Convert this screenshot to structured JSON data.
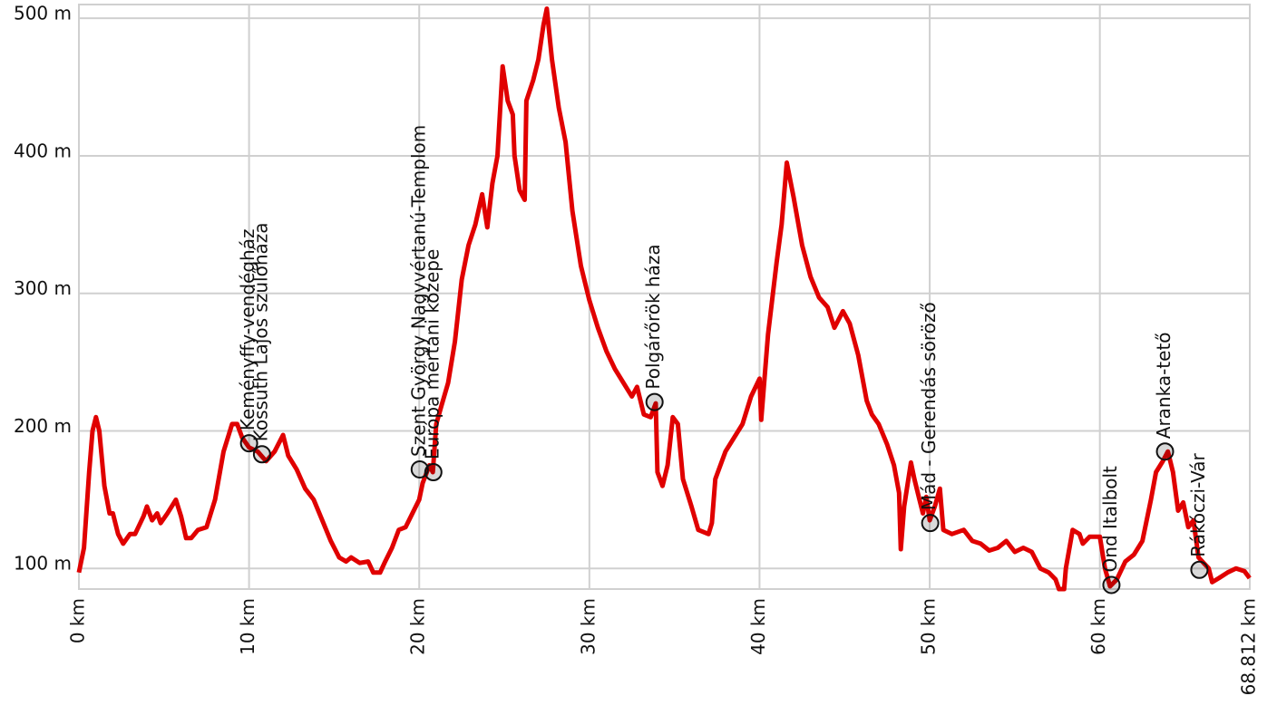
{
  "chart_data": {
    "type": "line",
    "x": [
      0,
      0.3,
      0.6,
      0.8,
      1.0,
      1.2,
      1.5,
      1.8,
      2.0,
      2.3,
      2.6,
      3.0,
      3.3,
      3.8,
      4.0,
      4.3,
      4.6,
      4.8,
      5.2,
      5.7,
      6.0,
      6.3,
      6.6,
      7.0,
      7.5,
      8.0,
      8.5,
      9.0,
      9.3,
      9.6,
      10.0,
      10.5,
      11.0,
      11.5,
      12.0,
      12.3,
      12.8,
      13.3,
      13.8,
      14.3,
      14.8,
      15.3,
      15.7,
      16.0,
      16.5,
      17.0,
      17.3,
      17.7,
      18.0,
      18.4,
      18.8,
      19.2,
      19.6,
      20.0,
      20.2,
      20.6,
      20.8,
      21.0,
      21.3,
      21.7,
      22.1,
      22.5,
      22.9,
      23.3,
      23.7,
      24.0,
      24.3,
      24.6,
      24.9,
      25.2,
      25.5,
      25.6,
      25.9,
      26.2,
      26.3,
      26.7,
      27.0,
      27.3,
      27.5,
      27.8,
      28.2,
      28.6,
      29.0,
      29.5,
      30.0,
      30.5,
      31.0,
      31.5,
      32.0,
      32.5,
      32.8,
      33.2,
      33.6,
      33.9,
      34.0,
      34.3,
      34.6,
      34.9,
      35.2,
      35.5,
      36.0,
      36.4,
      37.0,
      37.2,
      37.4,
      38.0,
      38.5,
      39.0,
      39.5,
      40.0,
      40.1,
      40.5,
      41.0,
      41.3,
      41.6,
      42.0,
      42.5,
      43.0,
      43.5,
      44.0,
      44.4,
      44.9,
      45.3,
      45.8,
      46.3,
      46.6,
      47.0,
      47.5,
      47.9,
      48.2,
      48.3,
      48.5,
      48.9,
      49.1,
      49.4,
      49.6,
      49.8,
      50.0,
      50.3,
      50.6,
      50.8,
      51.3,
      52.0,
      52.5,
      53.0,
      53.5,
      54.0,
      54.5,
      55.0,
      55.5,
      56.0,
      56.5,
      57.0,
      57.4,
      57.6,
      57.9,
      58.0,
      58.4,
      58.8,
      59.0,
      59.4,
      60.0,
      60.3,
      60.6,
      61.0,
      61.5,
      62.0,
      62.5,
      63.0,
      63.3,
      63.7,
      64.0,
      64.3,
      64.6,
      64.9,
      65.2,
      65.5,
      65.8,
      66.1,
      66.4,
      66.6,
      67.0,
      67.5,
      68.0,
      68.5,
      68.8
    ],
    "series": [
      {
        "color": "#e00000",
        "values": [
          97,
          115,
          170,
          200,
          210,
          200,
          160,
          140,
          140,
          125,
          118,
          125,
          125,
          138,
          145,
          135,
          140,
          133,
          140,
          150,
          138,
          122,
          122,
          128,
          130,
          150,
          185,
          205,
          205,
          195,
          188,
          185,
          178,
          185,
          197,
          182,
          172,
          158,
          150,
          135,
          120,
          108,
          105,
          108,
          104,
          105,
          97,
          97,
          105,
          115,
          128,
          130,
          140,
          150,
          162,
          175,
          170,
          205,
          218,
          235,
          265,
          310,
          335,
          350,
          372,
          348,
          380,
          400,
          465,
          440,
          430,
          400,
          375,
          368,
          440,
          455,
          470,
          495,
          507,
          470,
          435,
          410,
          360,
          320,
          295,
          275,
          258,
          245,
          235,
          225,
          232,
          212,
          210,
          220,
          170,
          160,
          175,
          210,
          205,
          165,
          145,
          128,
          125,
          133,
          165,
          185,
          195,
          205,
          225,
          238,
          208,
          270,
          322,
          350,
          395,
          370,
          335,
          312,
          297,
          290,
          275,
          287,
          278,
          255,
          222,
          212,
          205,
          190,
          175,
          155,
          114,
          145,
          177,
          165,
          150,
          140,
          152,
          135,
          145,
          158,
          128,
          125,
          128,
          120,
          118,
          113,
          115,
          120,
          112,
          115,
          112,
          100,
          97,
          92,
          85,
          85,
          100,
          128,
          125,
          118,
          123,
          123,
          100,
          87,
          92,
          105,
          110,
          120,
          150,
          170,
          178,
          185,
          170,
          142,
          148,
          130,
          135,
          108,
          104,
          100,
          90,
          93,
          97,
          100,
          98,
          93
        ]
      }
    ],
    "annotations": [
      {
        "label": "Keményffy-vendégház",
        "x": 10.0,
        "y": 191
      },
      {
        "label": "Kossuth Lajos szülőháza",
        "x": 10.76,
        "y": 183
      },
      {
        "label": "Szent György Nagyvértanú-Templom",
        "x": 20.03,
        "y": 172
      },
      {
        "label": "Európa mértani közepe",
        "x": 20.83,
        "y": 170
      },
      {
        "label": "Polgárőrök háza",
        "x": 33.83,
        "y": 221
      },
      {
        "label": "Mád - Gerendás söröző",
        "x": 50.03,
        "y": 133
      },
      {
        "label": "Ond Italbolt",
        "x": 60.68,
        "y": 88
      },
      {
        "label": "Aranka-tető",
        "x": 63.83,
        "y": 185
      },
      {
        "label": "Rákóczi-Vár",
        "x": 65.85,
        "y": 99
      }
    ],
    "xlim": [
      0,
      68.812
    ],
    "ylim": [
      85,
      510
    ],
    "xticks": [
      {
        "value": 0,
        "label": "0 km"
      },
      {
        "value": 10,
        "label": "10 km"
      },
      {
        "value": 20,
        "label": "20 km"
      },
      {
        "value": 30,
        "label": "30 km"
      },
      {
        "value": 40,
        "label": "40 km"
      },
      {
        "value": 50,
        "label": "50 km"
      },
      {
        "value": 60,
        "label": "60 km"
      },
      {
        "value": 68.812,
        "label": "68.812 km"
      }
    ],
    "yticks": [
      {
        "value": 100,
        "label": "100 m"
      },
      {
        "value": 200,
        "label": "200 m"
      },
      {
        "value": 300,
        "label": "300 m"
      },
      {
        "value": 400,
        "label": "400 m"
      },
      {
        "value": 500,
        "label": "500 m"
      }
    ],
    "grid": true
  }
}
